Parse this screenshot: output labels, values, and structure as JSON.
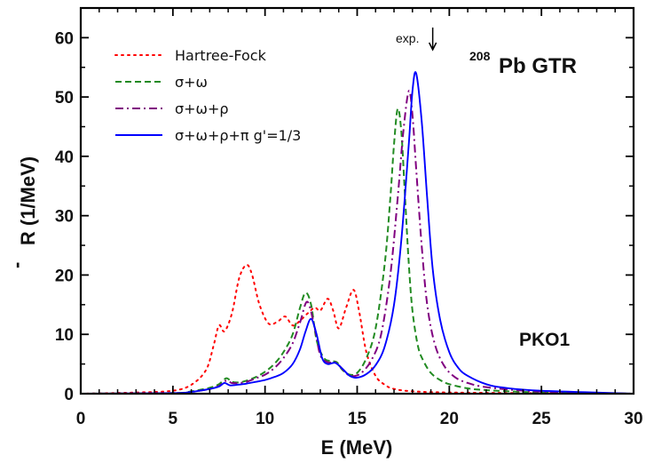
{
  "chart_data": {
    "type": "line",
    "title": "Pb GTR",
    "title_superscript": "208",
    "model_label": "PKO1",
    "annotation": "exp.",
    "annotation_x": 19.1,
    "xlabel": "E (MeV)",
    "ylabel": "R (1/MeV)",
    "ylabel_superscript": "-",
    "xlim": [
      0,
      30
    ],
    "ylim": [
      0,
      65
    ],
    "xticks": [
      0,
      5,
      10,
      15,
      20,
      25,
      30
    ],
    "yticks": [
      0,
      10,
      20,
      30,
      40,
      50,
      60
    ],
    "grid": false,
    "legend_position": "top-left",
    "series": [
      {
        "name": "Hartree-Fock",
        "color": "#ff0000",
        "style": "dotted",
        "x": [
          0,
          3,
          5,
          6,
          6.8,
          7.2,
          7.5,
          7.8,
          8.2,
          8.6,
          9.0,
          9.3,
          9.7,
          10.2,
          10.7,
          11.1,
          11.5,
          11.9,
          12.3,
          12.7,
          13.0,
          13.4,
          13.7,
          14.0,
          14.4,
          14.8,
          15.1,
          15.5,
          16.0,
          16.5,
          17.0,
          18.0,
          20.0,
          24.0,
          30.0
        ],
        "y": [
          0,
          0.2,
          0.5,
          1.5,
          4,
          8,
          11.5,
          10.5,
          13.5,
          19.5,
          21.7,
          20,
          15,
          11.8,
          12.2,
          13,
          11.5,
          12.3,
          13.5,
          14.5,
          14,
          16,
          14,
          11,
          14.5,
          17.5,
          14,
          7,
          3,
          1.5,
          0.8,
          0.4,
          0.2,
          0.1,
          0
        ]
      },
      {
        "name": "σ+ω",
        "color": "#228b22",
        "style": "dashed",
        "x": [
          0,
          5,
          6,
          7,
          7.5,
          7.9,
          8.2,
          8.6,
          9.0,
          9.5,
          10.0,
          10.5,
          11.0,
          11.5,
          11.9,
          12.2,
          12.5,
          12.8,
          13.2,
          13.6,
          13.9,
          14.2,
          14.6,
          15.0,
          15.5,
          16.0,
          16.5,
          16.8,
          17.0,
          17.2,
          17.4,
          17.6,
          17.8,
          18.0,
          18.3,
          18.6,
          19.0,
          19.5,
          20.0,
          21.0,
          22.0,
          24.0,
          26.0,
          30.0
        ],
        "y": [
          0,
          0.1,
          0.4,
          1,
          1.6,
          2.6,
          2,
          1.9,
          2.2,
          2.8,
          3.7,
          5,
          7,
          10,
          14.5,
          17,
          15,
          9,
          6,
          5.5,
          5.3,
          4,
          3.2,
          3.5,
          6,
          11,
          22,
          33,
          42,
          48,
          44,
          33,
          22,
          14,
          8,
          5.5,
          3.5,
          2.3,
          1.6,
          0.9,
          0.6,
          0.3,
          0.15,
          0
        ]
      },
      {
        "name": "σ+ω+ρ",
        "color": "#800080",
        "style": "dashdot",
        "x": [
          0,
          5,
          6,
          7,
          7.5,
          7.9,
          8.2,
          8.6,
          9.0,
          9.5,
          10.0,
          10.5,
          11.0,
          11.5,
          11.9,
          12.3,
          12.7,
          13.0,
          13.4,
          13.8,
          14.1,
          14.5,
          14.9,
          15.3,
          15.8,
          16.3,
          16.8,
          17.2,
          17.5,
          17.8,
          18.0,
          18.2,
          18.5,
          18.8,
          19.2,
          19.7,
          20.3,
          21.0,
          22.0,
          24.0,
          26.0,
          30.0
        ],
        "y": [
          0,
          0.1,
          0.3,
          0.8,
          1.3,
          2.2,
          1.8,
          1.8,
          2.0,
          2.6,
          3.2,
          4.3,
          6,
          8.5,
          12,
          15.5,
          11,
          6.5,
          5.3,
          5.3,
          4.5,
          3.2,
          3,
          3.7,
          5.8,
          10,
          20,
          33,
          44,
          51,
          47,
          38,
          25,
          15,
          8.5,
          4.8,
          2.8,
          1.8,
          1.1,
          0.5,
          0.25,
          0
        ]
      },
      {
        "name": "σ+ω+ρ+π g'=1/3",
        "color": "#0000ff",
        "style": "solid",
        "x": [
          0,
          5,
          6,
          7,
          7.5,
          7.8,
          8.1,
          8.5,
          9.0,
          9.5,
          10.0,
          10.5,
          11.0,
          11.5,
          11.9,
          12.2,
          12.5,
          12.8,
          13.1,
          13.4,
          13.8,
          14.2,
          14.6,
          15.0,
          15.5,
          16.0,
          16.5,
          17.0,
          17.4,
          17.8,
          18.0,
          18.2,
          18.5,
          18.8,
          19.1,
          19.5,
          20.0,
          20.5,
          21.0,
          22.0,
          23.0,
          25.0,
          30.0
        ],
        "y": [
          0,
          0.1,
          0.3,
          0.8,
          1.2,
          1.8,
          1.4,
          1.5,
          1.7,
          2.0,
          2.3,
          2.8,
          3.5,
          5,
          7.5,
          10.5,
          12.6,
          10,
          6,
          5,
          5.2,
          4.2,
          3,
          2.7,
          3.3,
          4.8,
          8,
          15,
          26,
          42,
          51,
          54,
          46,
          33,
          21,
          12.5,
          7,
          4.3,
          3,
          1.6,
          1,
          0.5,
          0
        ]
      }
    ]
  }
}
